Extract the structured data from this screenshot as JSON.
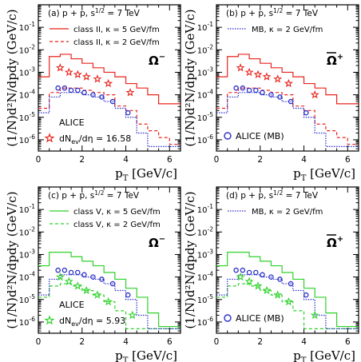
{
  "chart_data": [
    {
      "type": "line",
      "panel_label": "(a) p + p, s",
      "energy_suffix": " = 7 TeV",
      "particle": "Ω",
      "particle_charge": "−",
      "xlabel": "p",
      "xlabel_sub": "T",
      "xlabel_unit": " [GeV/c]",
      "ylabel": "(1/N",
      "ylabel_rest": ")d²N/dp",
      "ylabel_tail": "dy (GeV/c)",
      "xlim": [
        0,
        6.5
      ],
      "ylim_log10": [
        -6.5,
        0
      ],
      "x_ticks": [
        "0",
        "2",
        "4",
        "6"
      ],
      "y_tick_exponents": [
        "-1",
        "-2",
        "-3",
        "-4",
        "-5",
        "-6"
      ],
      "legend": {
        "entries": [
          {
            "label": "class II, κ = 5 GeV/fm",
            "style": "solid",
            "color": "#e8231c"
          },
          {
            "label": "class II, κ = 2 GeV/fm",
            "style": "dashed",
            "color": "#e8231c"
          }
        ]
      },
      "data_legend": {
        "label_top": "ALICE",
        "label": "dN",
        "label_sub": "ev",
        "label_tail": "/dη = 16.58",
        "marker": "star",
        "color": "#e8231c"
      },
      "bin_edges": [
        0,
        0.5,
        1,
        1.5,
        2,
        2.5,
        3,
        3.5,
        4,
        4.5,
        5,
        5.5,
        6,
        6.5
      ],
      "series": [
        {
          "name": "class II, κ = 5 GeV/fm",
          "style": "solid",
          "color": "#e8231c",
          "values": [
            -3.2,
            -2.3,
            -2.2,
            -2.4,
            -2.6,
            -2.8,
            -3.0,
            -3.2,
            -3.5,
            -3.7,
            -4.0,
            -4.4,
            -4.4
          ]
        },
        {
          "name": "class II, κ = 2 GeV/fm",
          "style": "dashed",
          "color": "#e8231c",
          "values": [
            -4.6,
            -3.9,
            -3.7,
            -3.7,
            -3.8,
            -3.9,
            -4.0,
            -4.5,
            -4.7,
            -5.3,
            -5.6,
            -5.9,
            -6.2
          ]
        },
        {
          "name": "MB, κ = 2 GeV/fm",
          "style": "dotted",
          "color": "#2a2fc9",
          "values": [
            -4.8,
            -4.1,
            -3.9,
            -3.9,
            -4.0,
            -4.1,
            -4.3,
            -4.6,
            -5.0,
            -5.7,
            -6.3,
            -6.3,
            -6.3
          ]
        }
      ],
      "points": {
        "marker": "star",
        "color": "#e8231c",
        "x": [
          1.0,
          1.4,
          1.8,
          2.2,
          2.7,
          3.2,
          4.2
        ],
        "y": [
          -2.8,
          -3.0,
          -3.1,
          -3.2,
          -3.3,
          -3.5,
          -3.9
        ]
      },
      "points_b": {
        "marker": "circle",
        "color": "#2a2fc9",
        "x": [
          0.9,
          1.2,
          1.5,
          1.8,
          2.1,
          2.5,
          2.9,
          3.4,
          4.1
        ],
        "y": [
          -3.7,
          -3.7,
          -3.8,
          -3.8,
          -3.9,
          -4.0,
          -4.1,
          -4.3,
          -4.8
        ]
      }
    },
    {
      "type": "line",
      "panel_label": "(b) p + p, s",
      "energy_suffix": " = 7 TeV",
      "particle": "Ω",
      "particle_bar": true,
      "particle_charge": "+",
      "xlabel": "p",
      "xlabel_sub": "T",
      "xlabel_unit": " [GeV/c]",
      "ylabel": "(1/N",
      "ylabel_rest": ")d²N/dp",
      "ylabel_tail": "dy (GeV/c)",
      "xlim": [
        0,
        6.5
      ],
      "ylim_log10": [
        -6.5,
        0
      ],
      "x_ticks": [
        "0",
        "2",
        "4",
        "6"
      ],
      "y_tick_exponents": [
        "-1",
        "-2",
        "-3",
        "-4",
        "-5",
        "-6"
      ],
      "legend": {
        "entries": [
          {
            "label": "MB, κ = 2 GeV/fm",
            "style": "dotted",
            "color": "#2a2fc9"
          }
        ]
      },
      "data_legend": {
        "label": "ALICE (MB)",
        "marker": "circle",
        "color": "#2a2fc9"
      },
      "bin_edges": [
        0,
        0.5,
        1,
        1.5,
        2,
        2.5,
        3,
        3.5,
        4,
        4.5,
        5,
        5.5,
        6,
        6.5
      ],
      "series": [
        {
          "style": "solid",
          "color": "#e8231c",
          "values": [
            -3.2,
            -2.3,
            -2.2,
            -2.4,
            -2.6,
            -2.8,
            -3.0,
            -3.2,
            -3.5,
            -3.7,
            -4.0,
            -4.4,
            -4.4
          ]
        },
        {
          "style": "dashed",
          "color": "#e8231c",
          "values": [
            -4.6,
            -3.9,
            -3.7,
            -3.7,
            -3.8,
            -3.9,
            -4.0,
            -4.5,
            -4.7,
            -5.3,
            -5.6,
            -5.9,
            -6.2
          ]
        },
        {
          "name": "MB, κ = 2 GeV/fm",
          "style": "dotted",
          "color": "#2a2fc9",
          "values": [
            -4.8,
            -4.1,
            -3.9,
            -3.9,
            -4.0,
            -4.1,
            -4.3,
            -4.6,
            -5.0,
            -5.7,
            -6.3,
            -6.3,
            -6.3
          ]
        }
      ],
      "points": {
        "marker": "star",
        "color": "#e8231c",
        "x": [
          1.1,
          1.5,
          1.9,
          2.3,
          2.8,
          3.3,
          4.5
        ],
        "y": [
          -2.8,
          -3.0,
          -3.1,
          -3.2,
          -3.3,
          -3.5,
          -4.0
        ]
      },
      "points_b": {
        "marker": "circle",
        "color": "#2a2fc9",
        "x": [
          0.9,
          1.2,
          1.5,
          1.8,
          2.1,
          2.5,
          2.9,
          3.4,
          4.1
        ],
        "y": [
          -3.7,
          -3.7,
          -3.8,
          -3.8,
          -3.9,
          -4.0,
          -4.1,
          -4.3,
          -4.8
        ]
      }
    },
    {
      "type": "line",
      "panel_label": "(c) p + p, s",
      "energy_suffix": " = 7 TeV",
      "particle": "Ω",
      "particle_charge": "−",
      "xlabel": "p",
      "xlabel_sub": "T",
      "xlabel_unit": " [GeV/c]",
      "ylabel": "(1/N",
      "ylabel_rest": ")d²N/dp",
      "ylabel_tail": "dy (GeV/c)",
      "xlim": [
        0,
        6.5
      ],
      "ylim_log10": [
        -6.5,
        0
      ],
      "x_ticks": [
        "0",
        "2",
        "4",
        "6"
      ],
      "y_tick_exponents": [
        "-1",
        "-2",
        "-3",
        "-4",
        "-5",
        "-6"
      ],
      "legend": {
        "entries": [
          {
            "label": "class V, κ = 5 GeV/fm",
            "style": "solid",
            "color": "#2fd12b"
          },
          {
            "label": "class V, κ = 2 GeV/fm",
            "style": "dashed",
            "color": "#2fd12b"
          }
        ]
      },
      "data_legend": {
        "label_top": "ALICE",
        "label": "dN",
        "label_sub": "ev",
        "label_tail": "/dη = 5.93",
        "marker": "star",
        "color": "#2fd12b"
      },
      "bin_edges": [
        0,
        0.5,
        1,
        1.5,
        2,
        2.5,
        3,
        3.5,
        4,
        4.5,
        5,
        5.5,
        6,
        6.5
      ],
      "series": [
        {
          "name": "class V, κ = 5 GeV/fm",
          "style": "solid",
          "color": "#2fd12b",
          "values": [
            -3.5,
            -2.9,
            -2.9,
            -3.1,
            -3.3,
            -3.5,
            -3.8,
            -4.1,
            -4.5,
            -4.9,
            -5.6,
            -6.2,
            -6.2
          ]
        },
        {
          "name": "class V, κ = 2 GeV/fm",
          "style": "dashed",
          "color": "#2fd12b",
          "values": [
            -4.9,
            -4.4,
            -4.3,
            -4.4,
            -4.6,
            -4.8,
            -5.1,
            -5.5,
            -6.3,
            -6.3,
            -6.3,
            -6.3,
            -6.3
          ]
        },
        {
          "name": "MB, κ = 2 GeV/fm",
          "style": "dotted",
          "color": "#2a2fc9",
          "values": [
            -4.8,
            -4.1,
            -3.9,
            -3.9,
            -4.0,
            -4.1,
            -4.3,
            -4.6,
            -5.0,
            -5.7,
            -6.3,
            -6.3,
            -6.3
          ]
        }
      ],
      "points": {
        "marker": "star",
        "color": "#2fd12b",
        "x": [
          1.0,
          1.4,
          1.8,
          2.2,
          2.7,
          3.2,
          4.3
        ],
        "y": [
          -4.0,
          -4.2,
          -4.4,
          -4.6,
          -4.8,
          -5.1,
          -5.7
        ]
      },
      "points_b": {
        "marker": "circle",
        "color": "#2a2fc9",
        "x": [
          0.9,
          1.2,
          1.5,
          1.8,
          2.1,
          2.5,
          2.9,
          3.4,
          4.1
        ],
        "y": [
          -3.7,
          -3.7,
          -3.8,
          -3.8,
          -3.9,
          -4.0,
          -4.1,
          -4.3,
          -4.8
        ]
      }
    },
    {
      "type": "line",
      "panel_label": "(d) p + p, s",
      "energy_suffix": " = 7 TeV",
      "particle": "Ω",
      "particle_bar": true,
      "particle_charge": "+",
      "xlabel": "p",
      "xlabel_sub": "T",
      "xlabel_unit": " [GeV/c]",
      "ylabel": "(1/N",
      "ylabel_rest": ")d²N/dp",
      "ylabel_tail": "dy (GeV/c)",
      "xlim": [
        0,
        6.5
      ],
      "ylim_log10": [
        -6.5,
        0
      ],
      "x_ticks": [
        "0",
        "2",
        "4",
        "6"
      ],
      "y_tick_exponents": [
        "-1",
        "-2",
        "-3",
        "-4",
        "-5",
        "-6"
      ],
      "legend": {
        "entries": [
          {
            "label": "MB, κ = 2 GeV/fm",
            "style": "dotted",
            "color": "#2a2fc9"
          }
        ]
      },
      "data_legend": {
        "label": "ALICE (MB)",
        "marker": "circle",
        "color": "#2a2fc9"
      },
      "bin_edges": [
        0,
        0.5,
        1,
        1.5,
        2,
        2.5,
        3,
        3.5,
        4,
        4.5,
        5,
        5.5,
        6,
        6.5
      ],
      "series": [
        {
          "style": "solid",
          "color": "#2fd12b",
          "values": [
            -3.5,
            -2.9,
            -2.9,
            -3.1,
            -3.3,
            -3.5,
            -3.8,
            -4.1,
            -4.5,
            -4.9,
            -5.6,
            -6.2,
            -6.2
          ]
        },
        {
          "style": "dashed",
          "color": "#2fd12b",
          "values": [
            -4.9,
            -4.4,
            -4.3,
            -4.4,
            -4.6,
            -4.8,
            -5.1,
            -5.5,
            -6.3,
            -6.3,
            -6.3,
            -6.3,
            -6.3
          ]
        },
        {
          "name": "MB, κ = 2 GeV/fm",
          "style": "dotted",
          "color": "#2a2fc9",
          "values": [
            -4.8,
            -4.1,
            -3.9,
            -3.9,
            -4.0,
            -4.1,
            -4.3,
            -4.6,
            -5.0,
            -5.7,
            -6.3,
            -6.3,
            -6.3
          ]
        }
      ],
      "points": {
        "marker": "star",
        "color": "#2fd12b",
        "x": [
          1.1,
          1.5,
          1.9,
          2.3,
          2.8,
          3.3,
          4.5
        ],
        "y": [
          -4.0,
          -4.2,
          -4.4,
          -4.6,
          -4.8,
          -5.1,
          -5.7
        ]
      },
      "points_b": {
        "marker": "circle",
        "color": "#2a2fc9",
        "x": [
          0.9,
          1.2,
          1.5,
          1.8,
          2.1,
          2.5,
          2.9,
          3.4,
          4.1
        ],
        "y": [
          -3.7,
          -3.7,
          -3.8,
          -3.8,
          -3.9,
          -4.0,
          -4.1,
          -4.3,
          -4.8
        ]
      }
    }
  ]
}
